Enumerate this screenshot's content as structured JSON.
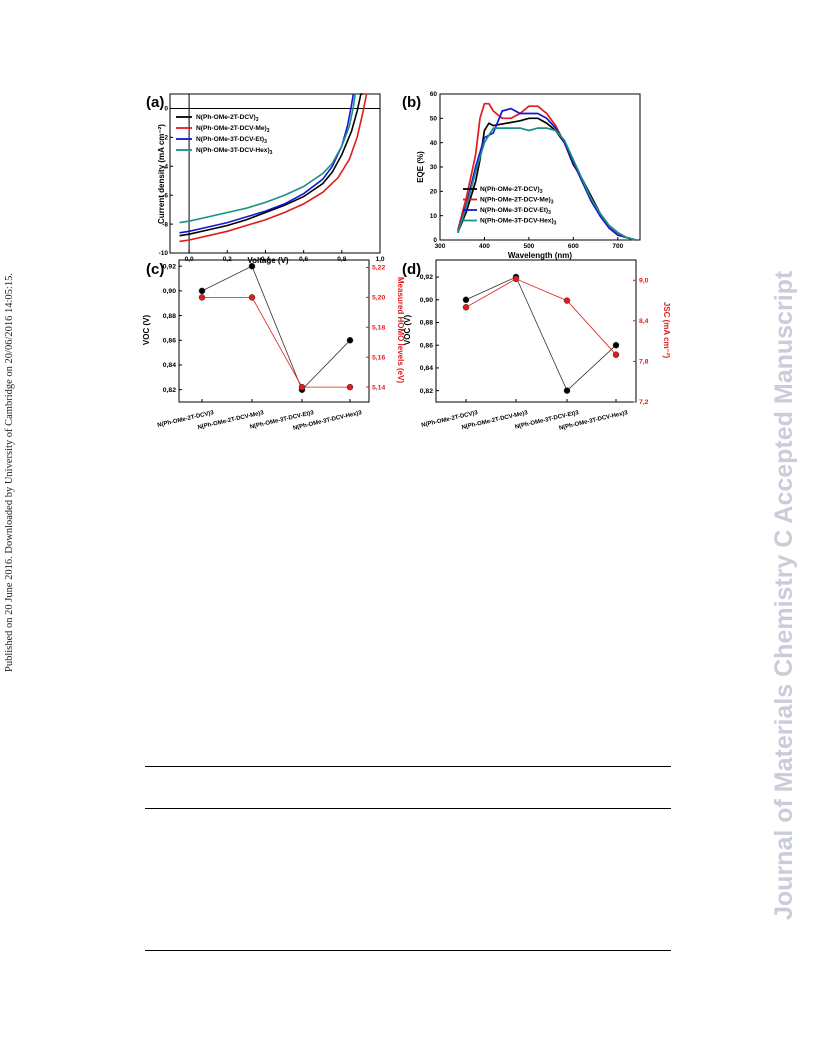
{
  "side_note": "Published on 20 June 2016. Downloaded by University of Cambridge on 20/06/2016 14:05:15.",
  "watermark": "Journal of Materials Chemistry C Accepted Manuscript",
  "colors": {
    "black": "#000000",
    "red": "#e11b1b",
    "blue": "#1515d6",
    "teal": "#1c8f86"
  },
  "chart_data": [
    {
      "panel": "(a)",
      "type": "line",
      "xlabel": "Voltage (V)",
      "ylabel": "Current density (mA cm⁻²)",
      "xlim": [
        -0.1,
        1.0
      ],
      "ylim": [
        -10,
        1
      ],
      "xticks": [
        "0,0",
        "0,2",
        "0,4",
        "0,6",
        "0,8",
        "1,0"
      ],
      "yticks": [
        "0",
        "-2",
        "-4",
        "-6",
        "-8",
        "-10"
      ],
      "legend_position": "top-left",
      "series": [
        {
          "name": "N(Ph-OMe-2T-DCV)3",
          "color": "#000000",
          "x": [
            -0.05,
            0,
            0.1,
            0.2,
            0.3,
            0.4,
            0.5,
            0.6,
            0.7,
            0.75,
            0.8,
            0.85,
            0.88,
            0.9,
            0.91
          ],
          "y": [
            -8.8,
            -8.7,
            -8.4,
            -8.1,
            -7.7,
            -7.2,
            -6.7,
            -6.1,
            -5.2,
            -4.4,
            -3.2,
            -1.6,
            -0.2,
            1.0,
            1.0
          ]
        },
        {
          "name": "N(Ph-OMe-2T-DCV-Me)3",
          "color": "#e11b1b",
          "x": [
            -0.05,
            0,
            0.1,
            0.2,
            0.3,
            0.4,
            0.5,
            0.6,
            0.7,
            0.78,
            0.84,
            0.88,
            0.91,
            0.93,
            0.94
          ],
          "y": [
            -9.2,
            -9.1,
            -8.8,
            -8.5,
            -8.1,
            -7.7,
            -7.2,
            -6.6,
            -5.8,
            -4.8,
            -3.5,
            -2.0,
            -0.3,
            1.0,
            1.0
          ]
        },
        {
          "name": "N(Ph-OMe-3T-DCV-Et)3",
          "color": "#1515d6",
          "x": [
            -0.05,
            0,
            0.1,
            0.2,
            0.3,
            0.4,
            0.5,
            0.6,
            0.7,
            0.75,
            0.8,
            0.83,
            0.85,
            0.86
          ],
          "y": [
            -8.6,
            -8.5,
            -8.2,
            -7.9,
            -7.5,
            -7.1,
            -6.6,
            -5.9,
            -4.9,
            -4.0,
            -2.6,
            -1.2,
            0.2,
            1.0
          ]
        },
        {
          "name": "N(Ph-OMe-3T-DCV-Hex)3",
          "color": "#1c8f86",
          "x": [
            -0.05,
            0,
            0.1,
            0.2,
            0.3,
            0.4,
            0.5,
            0.6,
            0.7,
            0.75,
            0.8,
            0.84,
            0.86,
            0.87
          ],
          "y": [
            -7.9,
            -7.8,
            -7.5,
            -7.2,
            -6.9,
            -6.5,
            -6.0,
            -5.4,
            -4.5,
            -3.8,
            -2.6,
            -1.2,
            0.1,
            1.0
          ]
        }
      ]
    },
    {
      "panel": "(b)",
      "type": "line",
      "xlabel": "Wavelength (nm)",
      "ylabel": "EQE (%)",
      "xlim": [
        300,
        750
      ],
      "ylim": [
        0,
        60
      ],
      "xticks": [
        "300",
        "400",
        "500",
        "600",
        "700"
      ],
      "yticks": [
        "0",
        "10",
        "20",
        "30",
        "40",
        "50",
        "60"
      ],
      "legend_position": "bottom-center",
      "series": [
        {
          "name": "N(Ph-OMe-2T-DCV)3",
          "color": "#000000",
          "x": [
            340,
            360,
            380,
            390,
            400,
            410,
            420,
            450,
            480,
            500,
            520,
            540,
            560,
            580,
            600,
            620,
            640,
            660,
            680,
            700,
            720,
            740
          ],
          "y": [
            3,
            12,
            24,
            33,
            45,
            48,
            47,
            48,
            49,
            50,
            50,
            48,
            45,
            40,
            31,
            25,
            18,
            11,
            6,
            3,
            1,
            0
          ]
        },
        {
          "name": "N(Ph-OMe-2T-DCV-Me)3",
          "color": "#e11b1b",
          "x": [
            340,
            360,
            380,
            390,
            400,
            410,
            420,
            440,
            460,
            480,
            500,
            520,
            540,
            560,
            580,
            600,
            620,
            640,
            660,
            680,
            700,
            720,
            740
          ],
          "y": [
            4,
            18,
            35,
            50,
            56,
            56,
            53,
            50,
            50,
            52,
            55,
            55,
            52,
            47,
            40,
            32,
            24,
            17,
            10,
            5,
            2,
            1,
            0
          ]
        },
        {
          "name": "N(Ph-OMe-3T-DCV-Et)3",
          "color": "#1515d6",
          "x": [
            340,
            360,
            380,
            400,
            420,
            440,
            460,
            480,
            500,
            520,
            540,
            560,
            580,
            600,
            620,
            640,
            660,
            680,
            700,
            720,
            740
          ],
          "y": [
            3,
            15,
            30,
            42,
            44,
            53,
            54,
            52,
            52,
            52,
            50,
            46,
            40,
            32,
            24,
            16,
            10,
            5,
            2,
            1,
            0
          ]
        },
        {
          "name": "N(Ph-OMe-3T-DCV-Hex)3",
          "color": "#1c8f86",
          "x": [
            340,
            360,
            380,
            400,
            420,
            440,
            460,
            480,
            500,
            520,
            540,
            560,
            580,
            600,
            620,
            640,
            660,
            680,
            700,
            720,
            740
          ],
          "y": [
            3,
            14,
            28,
            40,
            46,
            46,
            46,
            46,
            45,
            46,
            46,
            45,
            41,
            33,
            25,
            17,
            11,
            6,
            3,
            1,
            0
          ]
        }
      ]
    },
    {
      "panel": "(c)",
      "type": "scatter",
      "categories": [
        "N(Ph-OMe-2T-DCV)3",
        "N(Ph-OMe-2T-DCV-Me)3",
        "N(Ph-OMe-3T-DCV-Et)3",
        "N(Ph-OMe-3T-DCV-Hex)3"
      ],
      "ylabel": "VOC (V)",
      "y2label": "Measured HOMO levels (eV)",
      "ylim": [
        0.81,
        0.925
      ],
      "y2lim": [
        5.13,
        5.225
      ],
      "yticks": [
        "0,82",
        "0,84",
        "0,86",
        "0,88",
        "0,90",
        "0,92"
      ],
      "y2ticks": [
        "5,14",
        "5,16",
        "5,18",
        "5,20",
        "5,22"
      ],
      "series": [
        {
          "name": "VOC",
          "color": "#000000",
          "values": [
            0.9,
            0.92,
            0.82,
            0.86
          ]
        },
        {
          "name": "HOMO",
          "color": "#e11b1b",
          "values": [
            5.2,
            5.2,
            5.14,
            5.14
          ]
        }
      ]
    },
    {
      "panel": "(d)",
      "type": "scatter",
      "categories": [
        "N(Ph-OMe-2T-DCV)3",
        "N(Ph-OMe-2T-DCV-Me)3",
        "N(Ph-OMe-3T-DCV-Et)3",
        "N(Ph-OMe-3T-DCV-Hex)3"
      ],
      "ylabel": "VOC (V)",
      "y2label": "JSC (mA cm⁻²)",
      "ylim": [
        0.81,
        0.935
      ],
      "y2lim": [
        7.2,
        9.3
      ],
      "yticks": [
        "0,82",
        "0,84",
        "0,86",
        "0,88",
        "0,90",
        "0,92"
      ],
      "y2ticks": [
        "7,2",
        "7,8",
        "8,4",
        "9,0"
      ],
      "series": [
        {
          "name": "VOC",
          "color": "#000000",
          "values": [
            0.9,
            0.92,
            0.82,
            0.86
          ]
        },
        {
          "name": "JSC",
          "color": "#e11b1b",
          "values": [
            8.6,
            9.02,
            8.7,
            7.9
          ]
        }
      ]
    }
  ]
}
